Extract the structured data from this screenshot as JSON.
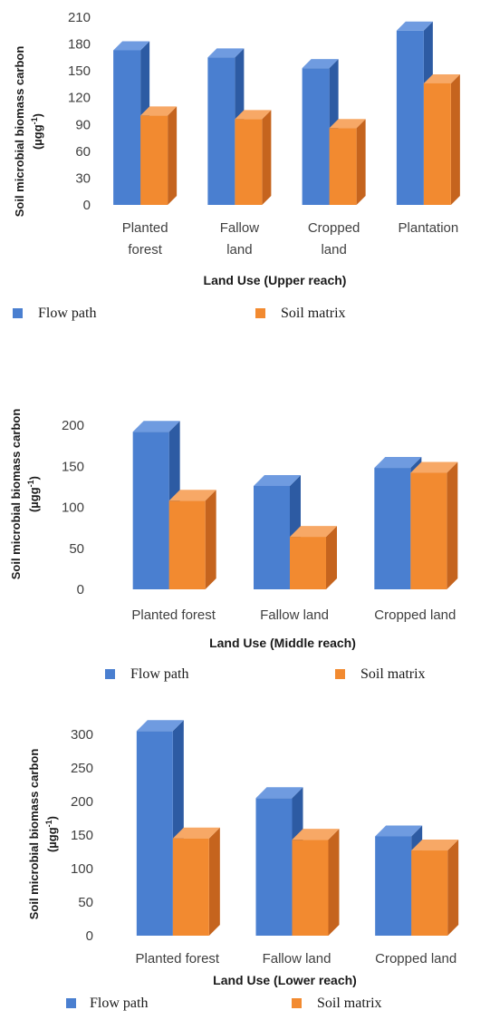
{
  "colors": {
    "flow_path": "#4a7fd0",
    "flow_path_side": "#2d5ba3",
    "flow_path_top": "#6f9be0",
    "soil_matrix": "#f28a30",
    "soil_matrix_side": "#c5641e",
    "soil_matrix_top": "#f7a866"
  },
  "chart_data": [
    {
      "type": "bar",
      "categories": [
        [
          "Planted",
          "forest"
        ],
        [
          "Fallow",
          "land"
        ],
        [
          "Cropped",
          "land"
        ],
        [
          "Plantation"
        ]
      ],
      "series": [
        {
          "name": "Flow path",
          "values": [
            173,
            165,
            153,
            195
          ]
        },
        {
          "name": "Soil matrix",
          "values": [
            100,
            96,
            86,
            136
          ]
        }
      ],
      "ylim": [
        0,
        210
      ],
      "yticks": [
        0,
        30,
        60,
        90,
        120,
        150,
        180,
        210
      ],
      "xlabel": "Land Use (Upper reach)",
      "ylabel": "Soil microbial biomass carbon",
      "yunit": "(µgg-1)",
      "legend": "bottom"
    },
    {
      "type": "bar",
      "categories": [
        [
          "Planted forest"
        ],
        [
          "Fallow land"
        ],
        [
          "Cropped land"
        ]
      ],
      "series": [
        {
          "name": "Flow path",
          "values": [
            192,
            126,
            148
          ]
        },
        {
          "name": "Soil matrix",
          "values": [
            108,
            64,
            142
          ]
        }
      ],
      "ylim": [
        0,
        200
      ],
      "yticks": [
        0,
        50,
        100,
        150,
        200
      ],
      "xlabel": "Land Use (Middle reach)",
      "ylabel": "Soil microbial biomass carbon",
      "yunit": "(µgg-1)",
      "legend": "bottom"
    },
    {
      "type": "bar",
      "categories": [
        [
          "Planted forest"
        ],
        [
          "Fallow land"
        ],
        [
          "Cropped land"
        ]
      ],
      "series": [
        {
          "name": "Flow path",
          "values": [
            305,
            205,
            148
          ]
        },
        {
          "name": "Soil matrix",
          "values": [
            145,
            143,
            127
          ]
        }
      ],
      "ylim": [
        0,
        300
      ],
      "yticks": [
        0,
        50,
        100,
        150,
        200,
        250,
        300
      ],
      "xlabel": "Land Use (Lower reach)",
      "ylabel": "Soil microbial biomass carbon",
      "yunit": "(µgg-1)",
      "legend": "bottom"
    }
  ]
}
